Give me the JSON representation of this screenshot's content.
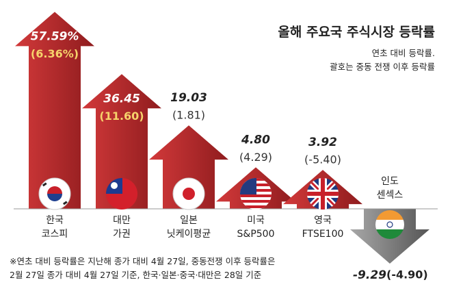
{
  "chart_data": {
    "type": "arrow-bar",
    "title": "올해 주요국 주식시장 등락률",
    "subtitle": "연초 대비 등락률.\n괄호는 중동 전쟁 이후 등락률",
    "categories": [
      "한국\n코스피",
      "대만\n가권",
      "일본\n닛케이평균",
      "미국\nS&P500",
      "영국\nFTSE100",
      "인도\n센섹스"
    ],
    "values": [
      57.59,
      36.45,
      19.03,
      4.8,
      3.92,
      -9.29
    ],
    "value_labels": [
      "57.59%",
      "36.45",
      "19.03",
      "4.80",
      "3.92",
      "-9.29"
    ],
    "war_values": [
      6.36,
      11.6,
      1.81,
      4.29,
      -5.4,
      -4.9
    ],
    "war_value_labels": [
      "(6.36%)",
      "(11.60)",
      "(1.81)",
      "(4.29)",
      "(-5.40)",
      "(-4.90)"
    ],
    "up_color": "#b5282a",
    "down_color": "#8c8c8c",
    "footnote": "※연초 대비 등락률은 지난해 종가 대비 4월 27일, 중동전쟁 이후 등락률은\n2월 27일 종가 대비 4월 27일 기준, 한국·일본·중국·대만은 28일 기준"
  }
}
